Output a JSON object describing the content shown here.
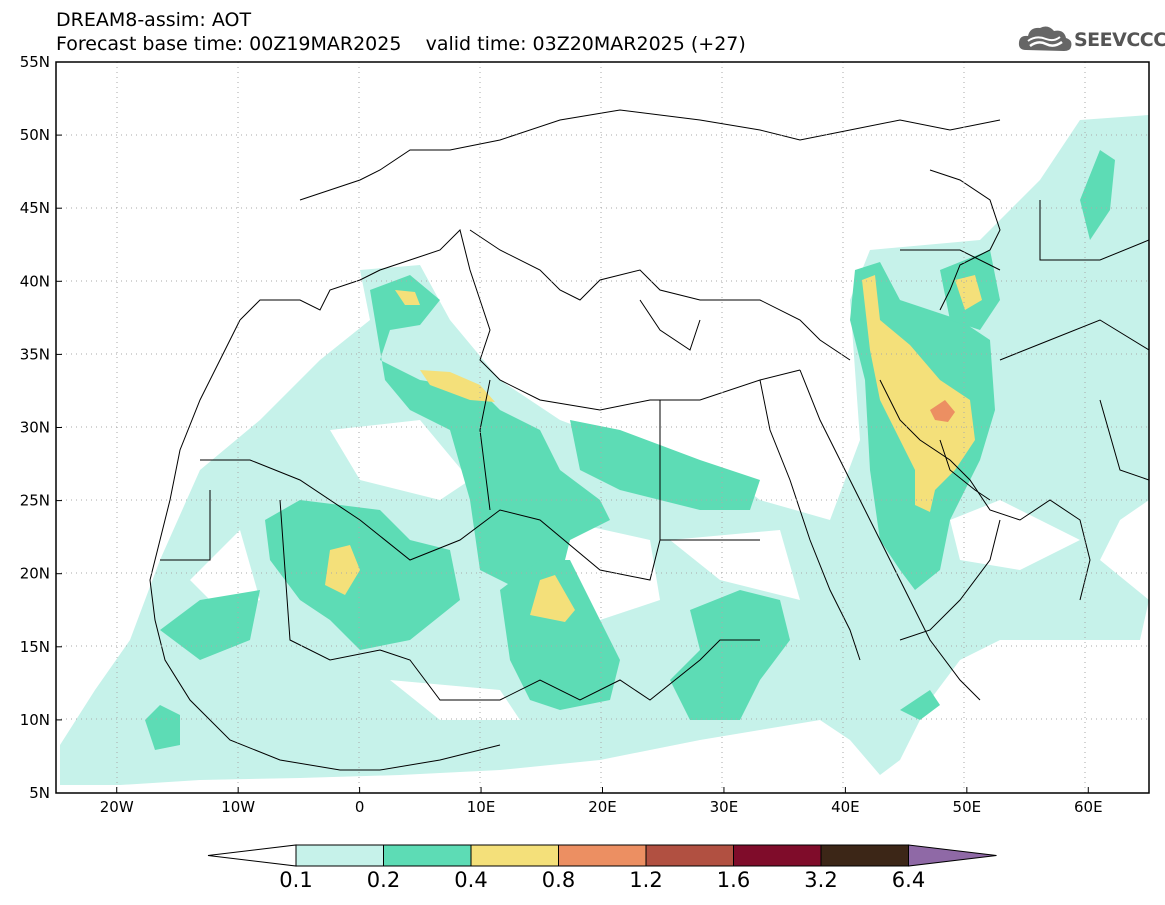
{
  "title": {
    "line1": "DREAM8-assim: AOT",
    "line2": "Forecast base time: 00Z19MAR2025    valid time: 03Z20MAR2025 (+27)"
  },
  "logo": {
    "text": "SEEVCCC",
    "icon": "cloud-logo-icon"
  },
  "map": {
    "lat_ticks": [
      "55N",
      "50N",
      "45N",
      "40N",
      "35N",
      "30N",
      "25N",
      "20N",
      "15N",
      "10N",
      "5N"
    ],
    "lon_ticks": [
      "20W",
      "10W",
      "0",
      "10E",
      "20E",
      "30E",
      "40E",
      "50E",
      "60E"
    ],
    "lat_range": [
      5,
      55
    ],
    "lon_range": [
      -25,
      65
    ],
    "grid": "dotted"
  },
  "colorbar": {
    "labels": [
      "0.1",
      "0.2",
      "0.4",
      "0.8",
      "1.2",
      "1.6",
      "3.2",
      "6.4"
    ],
    "colors": [
      "#ffffff",
      "#c6f2ea",
      "#5ddcb5",
      "#f4e07a",
      "#ec8f62",
      "#b15041",
      "#7f0c2a",
      "#3c2617",
      "#8f69a6"
    ]
  }
}
